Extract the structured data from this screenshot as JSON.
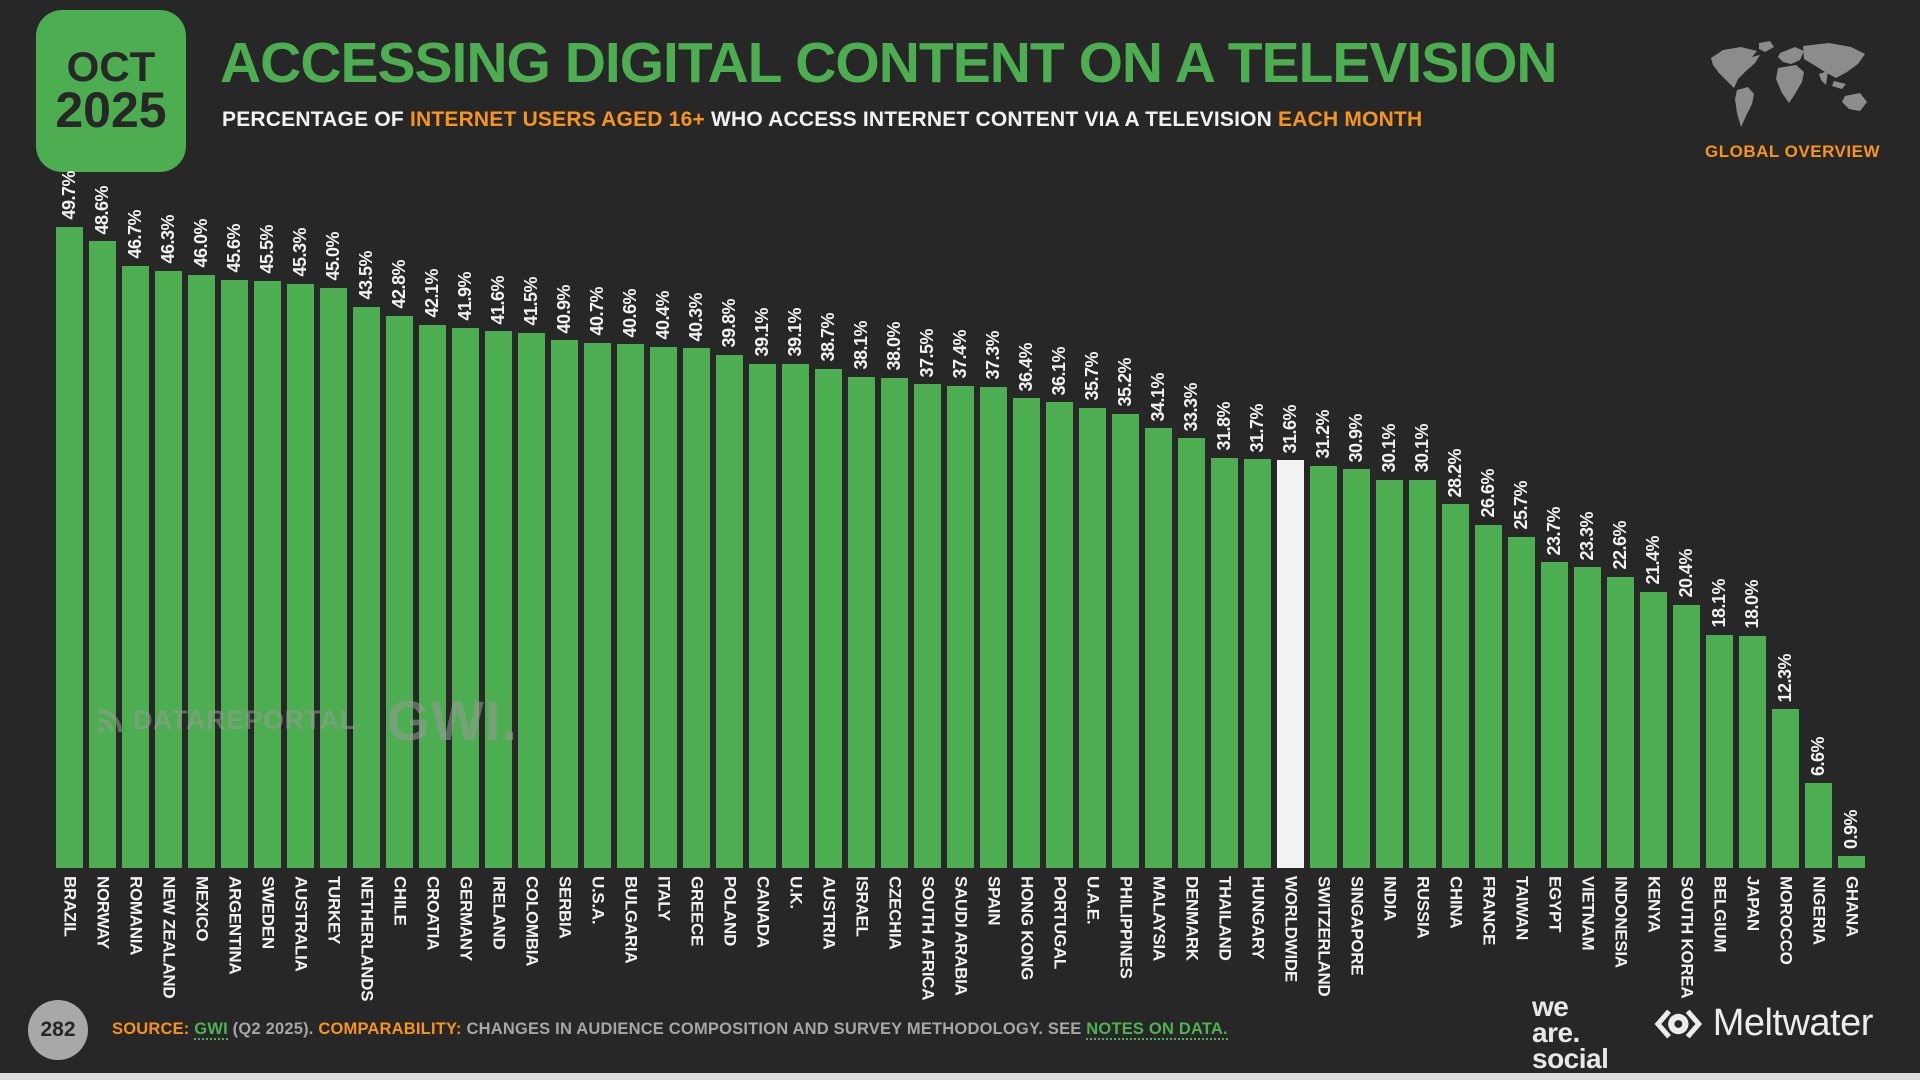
{
  "colors": {
    "green": "#4cae50",
    "orange": "#f7941d",
    "background": "#272727",
    "bar": "#4cae50",
    "highlight_bar": "#f2f2f2"
  },
  "header": {
    "badge_month": "OCT",
    "badge_year": "2025",
    "title": "ACCESSING DIGITAL CONTENT ON A TELEVISION",
    "subtitle_parts": [
      {
        "text": "PERCENTAGE OF ",
        "style": "light"
      },
      {
        "text": "INTERNET USERS AGED 16+",
        "style": "accent"
      },
      {
        "text": " WHO ACCESS INTERNET CONTENT VIA A TELEVISION ",
        "style": "light"
      },
      {
        "text": "EACH MONTH",
        "style": "accent"
      }
    ],
    "overview_label": "GLOBAL OVERVIEW"
  },
  "chart_data": {
    "type": "bar",
    "title": "ACCESSING DIGITAL CONTENT ON A TELEVISION",
    "ylabel": "% of internet users aged 16+",
    "unit": "%",
    "ylim": [
      0,
      50
    ],
    "grid": false,
    "value_labels": "rotated 90°, one decimal, percent sign",
    "highlight_category": "WORLDWIDE",
    "categories": [
      "BRAZIL",
      "NORWAY",
      "ROMANIA",
      "NEW ZEALAND",
      "MEXICO",
      "ARGENTINA",
      "SWEDEN",
      "AUSTRALIA",
      "TURKEY",
      "NETHERLANDS",
      "CHILE",
      "CROATIA",
      "GERMANY",
      "IRELAND",
      "COLOMBIA",
      "SERBIA",
      "U.S.A.",
      "BULGARIA",
      "ITALY",
      "GREECE",
      "POLAND",
      "CANADA",
      "U.K.",
      "AUSTRIA",
      "ISRAEL",
      "CZECHIA",
      "SOUTH AFRICA",
      "SAUDI ARABIA",
      "SPAIN",
      "HONG KONG",
      "PORTUGAL",
      "U.A.E.",
      "PHILIPPINES",
      "MALAYSIA",
      "DENMARK",
      "THAILAND",
      "HUNGARY",
      "WORLDWIDE",
      "SWITZERLAND",
      "SINGAPORE",
      "INDIA",
      "RUSSIA",
      "CHINA",
      "FRANCE",
      "TAIWAN",
      "EGYPT",
      "VIETNAM",
      "INDONESIA",
      "KENYA",
      "SOUTH KOREA",
      "BELGIUM",
      "JAPAN",
      "MOROCCO",
      "NIGERIA",
      "GHANA"
    ],
    "values": [
      49.7,
      48.6,
      46.7,
      46.3,
      46.0,
      45.6,
      45.5,
      45.3,
      45.0,
      43.5,
      42.8,
      42.1,
      41.9,
      41.6,
      41.5,
      40.9,
      40.7,
      40.6,
      40.4,
      40.3,
      39.8,
      39.1,
      39.1,
      38.7,
      38.1,
      38.0,
      37.5,
      37.4,
      37.3,
      36.4,
      36.1,
      35.7,
      35.2,
      34.1,
      33.3,
      31.8,
      31.7,
      31.6,
      31.2,
      30.9,
      30.1,
      30.1,
      28.2,
      26.6,
      25.7,
      23.7,
      23.3,
      22.6,
      21.4,
      20.4,
      18.1,
      18.0,
      12.3,
      6.6,
      0.9
    ]
  },
  "watermarks": {
    "datareportal": "DATAREPORTAL",
    "gwi": "GWI."
  },
  "footer": {
    "page_number": "282",
    "source_parts": [
      {
        "text": "SOURCE:",
        "style": "label"
      },
      {
        "text": " ",
        "style": "text"
      },
      {
        "text": "GWI",
        "style": "link"
      },
      {
        "text": " (Q2 2025). ",
        "style": "text"
      },
      {
        "text": "COMPARABILITY:",
        "style": "label"
      },
      {
        "text": " CHANGES IN AUDIENCE COMPOSITION AND SURVEY METHODOLOGY. SEE ",
        "style": "text"
      },
      {
        "text": "NOTES ON DATA.",
        "style": "link"
      }
    ],
    "logos": {
      "we_are_social_lines": [
        "we",
        "are.",
        "social"
      ],
      "meltwater": "Meltwater"
    }
  }
}
